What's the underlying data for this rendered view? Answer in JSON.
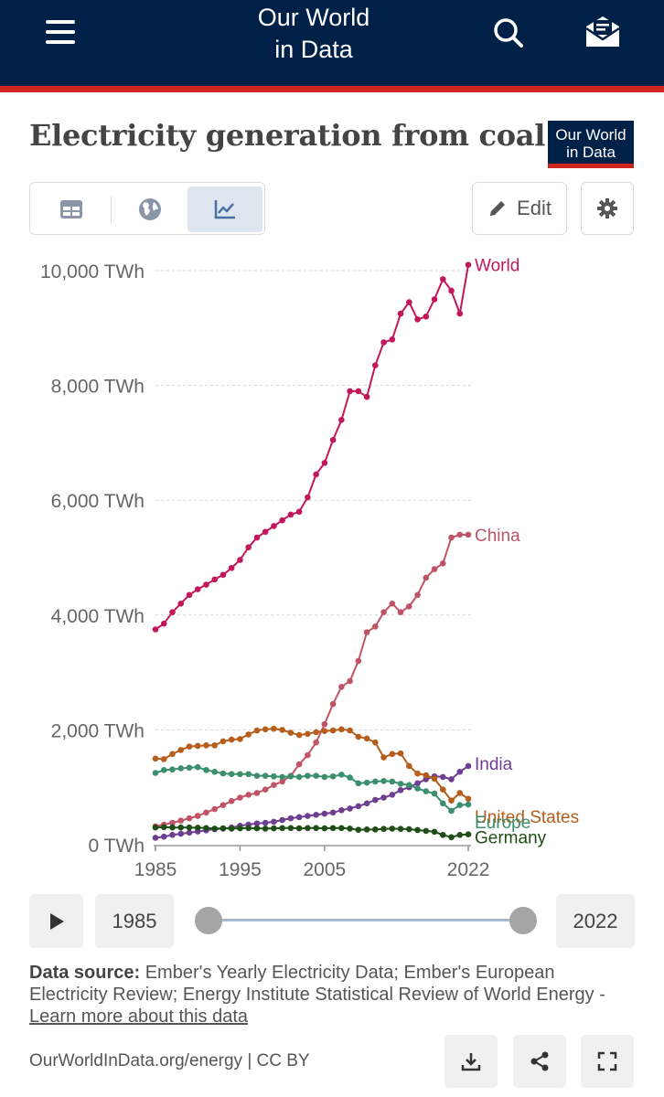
{
  "header": {
    "brand_line1": "Our World",
    "brand_line2": "in Data",
    "menu_icon": "hamburger-menu-icon",
    "search_icon": "search-icon",
    "subscribe_icon": "envelope-icon"
  },
  "chart_title": "Electricity generation from coal",
  "logo": {
    "line1": "Our World",
    "line2": "in Data"
  },
  "tabs": [
    {
      "icon": "table-icon"
    },
    {
      "icon": "globe-icon"
    },
    {
      "icon": "line-chart-icon",
      "active": true
    }
  ],
  "edit_label": "Edit",
  "colors": {
    "World": "#c2185b",
    "China": "#c05466",
    "India": "#6d3e91",
    "United States": "#b65d1b",
    "Europe": "#3b8e6e",
    "Germany": "#1f4d16",
    "header_bg": "#002147",
    "header_stripe": "#ce261e"
  },
  "chart_data": {
    "type": "line",
    "title": "Electricity generation from coal",
    "x_tick_labels": [
      "1985",
      "1995",
      "2005",
      "2022"
    ],
    "y_tick_labels": [
      "0 TWh",
      "2,000 TWh",
      "4,000 TWh",
      "6,000 TWh",
      "8,000 TWh",
      "10,000 TWh"
    ],
    "y_ticks": [
      0,
      2000,
      4000,
      6000,
      8000,
      10000
    ],
    "ylim": [
      0,
      10000
    ],
    "grid": "horizontal-dashed",
    "legend": "right-end-labels",
    "x": [
      1985,
      1986,
      1987,
      1988,
      1989,
      1990,
      1991,
      1992,
      1993,
      1994,
      1995,
      1996,
      1997,
      1998,
      1999,
      2000,
      2001,
      2002,
      2003,
      2004,
      2005,
      2006,
      2007,
      2008,
      2009,
      2010,
      2011,
      2012,
      2013,
      2014,
      2015,
      2016,
      2017,
      2018,
      2019,
      2020,
      2021,
      2022
    ],
    "series": [
      {
        "name": "World",
        "values": [
          3750,
          3850,
          4050,
          4200,
          4350,
          4450,
          4530,
          4620,
          4700,
          4820,
          4960,
          5180,
          5350,
          5450,
          5550,
          5650,
          5750,
          5800,
          6050,
          6450,
          6650,
          7050,
          7400,
          7900,
          7900,
          7800,
          8350,
          8750,
          8800,
          9250,
          9450,
          9150,
          9200,
          9500,
          9850,
          9650,
          9250,
          10100
        ]
      },
      {
        "name": "China",
        "values": [
          320,
          350,
          380,
          420,
          460,
          500,
          560,
          620,
          690,
          760,
          820,
          870,
          900,
          960,
          1040,
          1100,
          1200,
          1400,
          1560,
          1780,
          2100,
          2450,
          2750,
          2850,
          3200,
          3700,
          3800,
          4050,
          4200,
          4050,
          4150,
          4350,
          4650,
          4800,
          4900,
          5350,
          5400,
          5400
        ]
      },
      {
        "name": "India",
        "values": [
          120,
          140,
          170,
          190,
          210,
          230,
          250,
          270,
          280,
          300,
          330,
          350,
          370,
          380,
          400,
          430,
          460,
          480,
          500,
          520,
          540,
          560,
          600,
          630,
          670,
          720,
          780,
          820,
          870,
          950,
          1000,
          1070,
          1140,
          1190,
          1180,
          1140,
          1270,
          1370
        ]
      },
      {
        "name": "United States",
        "values": [
          1500,
          1490,
          1580,
          1650,
          1710,
          1720,
          1730,
          1730,
          1800,
          1830,
          1840,
          1920,
          1990,
          2010,
          2020,
          2000,
          1950,
          1910,
          1930,
          1960,
          1980,
          1990,
          2010,
          1990,
          1880,
          1850,
          1780,
          1520,
          1580,
          1590,
          1370,
          1240,
          1210,
          1150,
          960,
          770,
          900,
          800
        ]
      },
      {
        "name": "Europe",
        "values": [
          1250,
          1300,
          1310,
          1330,
          1340,
          1350,
          1300,
          1270,
          1240,
          1230,
          1230,
          1230,
          1200,
          1200,
          1190,
          1180,
          1190,
          1180,
          1200,
          1200,
          1180,
          1190,
          1220,
          1170,
          1070,
          1080,
          1100,
          1110,
          1100,
          1060,
          1040,
          980,
          930,
          890,
          720,
          590,
          690,
          700
        ]
      },
      {
        "name": "Germany",
        "values": [
          300,
          305,
          300,
          300,
          300,
          295,
          290,
          280,
          285,
          280,
          285,
          290,
          285,
          280,
          285,
          290,
          290,
          285,
          290,
          290,
          285,
          290,
          290,
          280,
          260,
          265,
          265,
          275,
          280,
          275,
          270,
          255,
          240,
          225,
          170,
          130,
          170,
          180
        ]
      }
    ]
  },
  "timeline": {
    "start_year": "1985",
    "end_year": "2022",
    "start_fraction": 0,
    "end_fraction": 1
  },
  "source": {
    "label": "Data source:",
    "text": "Ember's Yearly Electricity Data; Ember's European Electricity Review; Energy Institute Statistical Review of World Energy - ",
    "link": "Learn more about this data"
  },
  "footer": {
    "text": "OurWorldInData.org/energy | CC BY",
    "icons": [
      "download-icon",
      "share-icon",
      "fullscreen-icon"
    ]
  }
}
